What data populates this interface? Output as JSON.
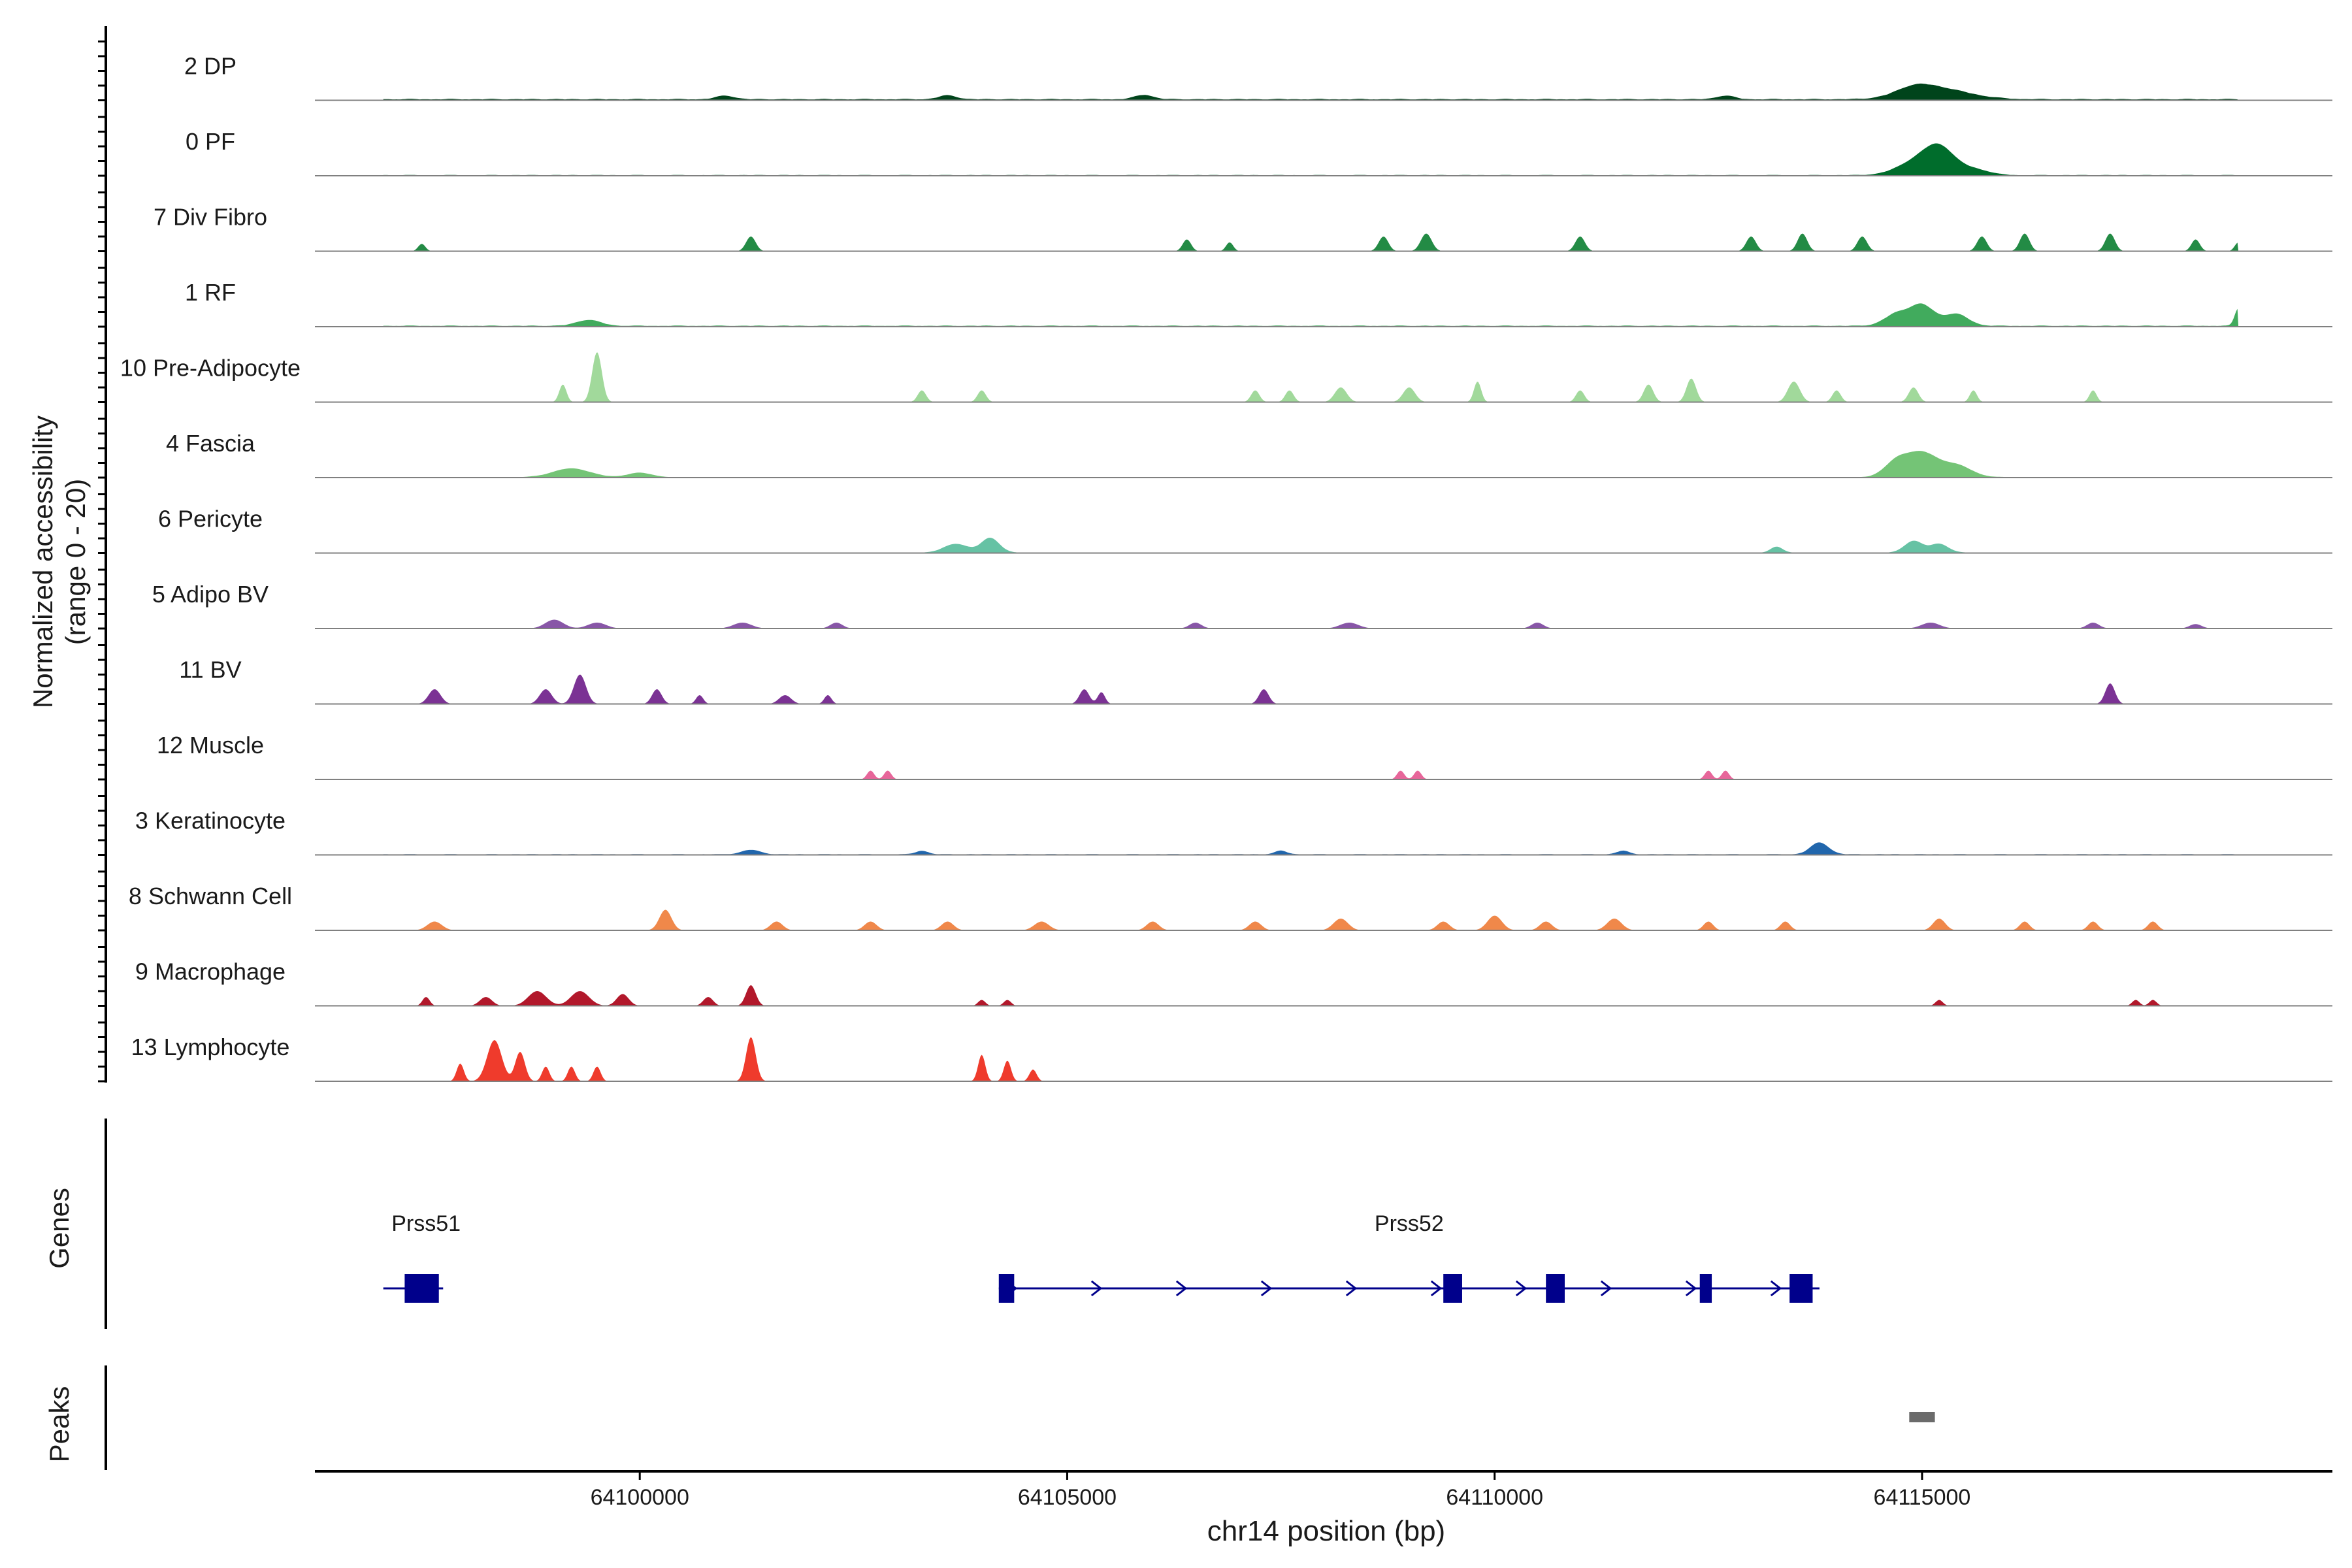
{
  "chart_data": {
    "type": "area",
    "title": "",
    "ylabel_line1": "Normalized accessibility",
    "ylabel_line2": "(range 0 - 20)",
    "y_range": [
      0,
      20
    ],
    "xlabel": "chr14 position (bp)",
    "xlim": [
      64096200,
      64119800
    ],
    "x_ticks": [
      64100000,
      64105000,
      64110000,
      64115000
    ],
    "x_tick_labels": [
      "64100000",
      "64105000",
      "64110000",
      "64115000"
    ],
    "tracks": [
      {
        "name": "2 DP",
        "color": "#00441b",
        "base": 0.5,
        "peaks": [
          [
            64115200,
            3.5,
            500
          ],
          [
            64114900,
            2.5,
            300
          ],
          [
            64105900,
            1.5,
            150
          ],
          [
            64112700,
            1.2,
            150
          ],
          [
            64103600,
            1.3,
            150
          ],
          [
            64101000,
            1.2,
            150
          ]
        ]
      },
      {
        "name": "0 PF",
        "color": "#006d2c",
        "base": 0.3,
        "peaks": [
          [
            64115200,
            9,
            250
          ],
          [
            64114900,
            4,
            300
          ],
          [
            64115600,
            2,
            250
          ]
        ]
      },
      {
        "name": "7 Div Fibro",
        "color": "#238b45",
        "peaks": [
          [
            64097450,
            2.5,
            60
          ],
          [
            64101300,
            5,
            80
          ],
          [
            64106400,
            4,
            70
          ],
          [
            64106900,
            3,
            60
          ],
          [
            64108700,
            5,
            80
          ],
          [
            64109200,
            6,
            90
          ],
          [
            64111000,
            5,
            80
          ],
          [
            64113000,
            5,
            80
          ],
          [
            64113600,
            6,
            80
          ],
          [
            64114300,
            5,
            80
          ],
          [
            64115700,
            5,
            80
          ],
          [
            64116200,
            6,
            80
          ],
          [
            64117200,
            6,
            80
          ],
          [
            64118200,
            4,
            70
          ],
          [
            64118700,
            3,
            60
          ]
        ]
      },
      {
        "name": "1 RF",
        "color": "#41ab5d",
        "base": 0.4,
        "peaks": [
          [
            64099400,
            2,
            200
          ],
          [
            64115000,
            7,
            200
          ],
          [
            64114700,
            4,
            200
          ],
          [
            64115400,
            4,
            200
          ],
          [
            64118700,
            6,
            60
          ]
        ]
      },
      {
        "name": "10 Pre-Adipocyte",
        "color": "#a1d99b",
        "peaks": [
          [
            64099500,
            17,
            80
          ],
          [
            64099100,
            6,
            60
          ],
          [
            64103300,
            4,
            70
          ],
          [
            64104000,
            4,
            70
          ],
          [
            64107200,
            4,
            70
          ],
          [
            64107600,
            4,
            70
          ],
          [
            64108200,
            5,
            100
          ],
          [
            64109000,
            5,
            100
          ],
          [
            64109800,
            7,
            60
          ],
          [
            64111000,
            4,
            70
          ],
          [
            64111800,
            6,
            80
          ],
          [
            64112300,
            8,
            80
          ],
          [
            64113500,
            7,
            100
          ],
          [
            64114000,
            4,
            70
          ],
          [
            64114900,
            5,
            80
          ],
          [
            64115600,
            4,
            60
          ],
          [
            64117000,
            4,
            60
          ]
        ]
      },
      {
        "name": "4 Fascia",
        "color": "#74c476",
        "base": 0.2,
        "peaks": [
          [
            64099200,
            3,
            300
          ],
          [
            64115000,
            8,
            250
          ],
          [
            64114700,
            5,
            200
          ],
          [
            64115400,
            4,
            250
          ],
          [
            64100000,
            1.5,
            200
          ]
        ]
      },
      {
        "name": "6 Pericyte",
        "color": "#66c2a4",
        "base": 0.2,
        "peaks": [
          [
            64104100,
            5,
            150
          ],
          [
            64103700,
            3,
            200
          ],
          [
            64114900,
            4,
            150
          ],
          [
            64115200,
            3,
            150
          ],
          [
            64113300,
            2,
            100
          ]
        ]
      },
      {
        "name": "5 Adipo BV",
        "color": "#8856a7",
        "peaks": [
          [
            64099000,
            3,
            150
          ],
          [
            64099500,
            2,
            150
          ],
          [
            64101200,
            2,
            150
          ],
          [
            64102300,
            2,
            100
          ],
          [
            64106500,
            2,
            100
          ],
          [
            64108300,
            2,
            150
          ],
          [
            64110500,
            2,
            100
          ],
          [
            64115100,
            2,
            150
          ],
          [
            64117000,
            2,
            100
          ],
          [
            64118200,
            1.5,
            100
          ]
        ]
      },
      {
        "name": "11 BV",
        "color": "#7b3294",
        "peaks": [
          [
            64097600,
            5,
            100
          ],
          [
            64098900,
            5,
            100
          ],
          [
            64099300,
            10,
            100
          ],
          [
            64100200,
            5,
            80
          ],
          [
            64100700,
            3,
            60
          ],
          [
            64101700,
            3,
            100
          ],
          [
            64102200,
            3,
            60
          ],
          [
            64105200,
            5,
            80
          ],
          [
            64105400,
            4,
            60
          ],
          [
            64107300,
            5,
            80
          ],
          [
            64117200,
            7,
            80
          ]
        ]
      },
      {
        "name": "12 Muscle",
        "color": "#e7669a",
        "peaks": [
          [
            64102700,
            3,
            60
          ],
          [
            64102900,
            3,
            60
          ],
          [
            64108900,
            3,
            60
          ],
          [
            64109100,
            3,
            60
          ],
          [
            64112500,
            3,
            60
          ],
          [
            64112700,
            3,
            60
          ]
        ]
      },
      {
        "name": "3 Keratinocyte",
        "color": "#2166ac",
        "base": 0.3,
        "peaks": [
          [
            64113800,
            4,
            150
          ],
          [
            64101300,
            1.5,
            150
          ],
          [
            64103300,
            1.2,
            100
          ],
          [
            64107500,
            1.2,
            100
          ],
          [
            64111500,
            1.2,
            100
          ]
        ]
      },
      {
        "name": "8 Schwann Cell",
        "color": "#f0884a",
        "peaks": [
          [
            64097600,
            3,
            120
          ],
          [
            64100300,
            7,
            100
          ],
          [
            64101600,
            3,
            100
          ],
          [
            64102700,
            3,
            100
          ],
          [
            64103600,
            3,
            100
          ],
          [
            64104700,
            3,
            120
          ],
          [
            64106000,
            3,
            100
          ],
          [
            64107200,
            3,
            100
          ],
          [
            64108200,
            4,
            120
          ],
          [
            64109400,
            3,
            100
          ],
          [
            64110000,
            5,
            120
          ],
          [
            64110600,
            3,
            100
          ],
          [
            64111400,
            4,
            120
          ],
          [
            64112500,
            3,
            80
          ],
          [
            64113400,
            3,
            80
          ],
          [
            64115200,
            4,
            100
          ],
          [
            64116200,
            3,
            80
          ],
          [
            64117000,
            3,
            80
          ],
          [
            64117700,
            3,
            80
          ]
        ]
      },
      {
        "name": "9 Macrophage",
        "color": "#b2182b",
        "peaks": [
          [
            64097500,
            3,
            60
          ],
          [
            64098200,
            3,
            100
          ],
          [
            64098800,
            5,
            150
          ],
          [
            64099300,
            5,
            150
          ],
          [
            64099800,
            4,
            100
          ],
          [
            64100800,
            3,
            80
          ],
          [
            64101300,
            7,
            80
          ],
          [
            64104000,
            2,
            60
          ],
          [
            64104300,
            2,
            60
          ],
          [
            64115200,
            2,
            60
          ],
          [
            64117500,
            2,
            60
          ],
          [
            64117700,
            2,
            60
          ]
        ]
      },
      {
        "name": "13 Lymphocyte",
        "color": "#ef3b2c",
        "peaks": [
          [
            64097900,
            6,
            60
          ],
          [
            64098300,
            14,
            120
          ],
          [
            64098600,
            10,
            80
          ],
          [
            64098900,
            5,
            60
          ],
          [
            64099200,
            5,
            60
          ],
          [
            64099500,
            5,
            60
          ],
          [
            64101300,
            15,
            80
          ],
          [
            64104000,
            9,
            60
          ],
          [
            64104300,
            7,
            60
          ],
          [
            64104600,
            4,
            60
          ]
        ]
      }
    ],
    "genes_label": "Genes",
    "genes": [
      {
        "name": "Prss51",
        "label_x": 64097500,
        "start": 64097000,
        "end": 64097700,
        "exons": [
          [
            64097250,
            64097650
          ]
        ],
        "strand": "+"
      },
      {
        "name": "Prss52",
        "label_x": 64109000,
        "start": 64104200,
        "end": 64113800,
        "exons": [
          [
            64104200,
            64104380
          ],
          [
            64109400,
            64109620
          ],
          [
            64110600,
            64110820
          ],
          [
            64112400,
            64112540
          ],
          [
            64113450,
            64113720
          ]
        ],
        "strand": "+"
      }
    ],
    "peaks_label": "Peaks",
    "peak_regions": [
      [
        64114850,
        64115150
      ]
    ]
  }
}
